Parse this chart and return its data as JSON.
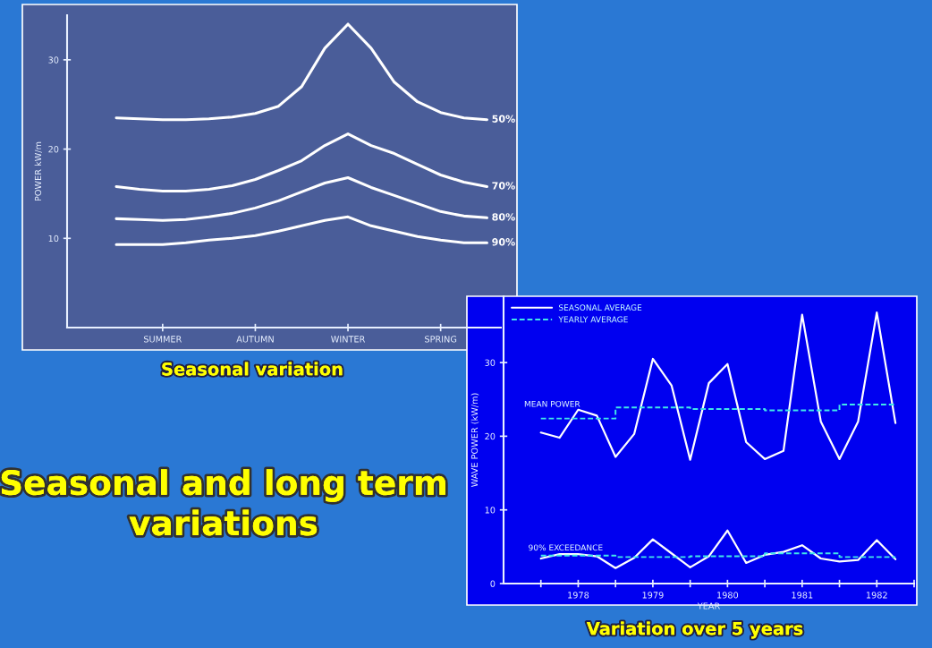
{
  "chart_data": [
    {
      "type": "line",
      "title": "Seasonal variation",
      "ylabel": "POWER kW/m",
      "categories": [
        null,
        null,
        "SUMMER",
        null,
        null,
        null,
        "AUTUMN",
        null,
        null,
        null,
        "WINTER",
        null,
        null,
        null,
        "SPRING",
        null,
        null
      ],
      "series": [
        {
          "name": "50%",
          "color": "#ffffff",
          "values": [
            23.5,
            23.4,
            23.3,
            23.3,
            23.4,
            23.6,
            24.0,
            24.8,
            27.0,
            31.3,
            34.0,
            31.3,
            27.5,
            25.3,
            24.1,
            23.5,
            23.3
          ]
        },
        {
          "name": "70%",
          "color": "#ffffff",
          "values": [
            15.8,
            15.5,
            15.3,
            15.3,
            15.5,
            15.9,
            16.6,
            17.6,
            18.7,
            20.4,
            21.7,
            20.4,
            19.5,
            18.3,
            17.1,
            16.3,
            15.8
          ]
        },
        {
          "name": "80%",
          "color": "#ffffff",
          "values": [
            12.2,
            12.1,
            12.0,
            12.1,
            12.4,
            12.8,
            13.4,
            14.2,
            15.2,
            16.2,
            16.8,
            15.7,
            14.8,
            13.9,
            13.0,
            12.5,
            12.3
          ]
        },
        {
          "name": "90%",
          "color": "#ffffff",
          "values": [
            9.3,
            9.3,
            9.3,
            9.5,
            9.8,
            10.0,
            10.3,
            10.8,
            11.4,
            12.0,
            12.4,
            11.4,
            10.8,
            10.2,
            9.8,
            9.5,
            9.5
          ]
        }
      ],
      "ylim": [
        0,
        35
      ],
      "yticks": [
        10,
        20,
        30
      ]
    },
    {
      "type": "line",
      "title": "Variation over 5 years",
      "xlabel": "YEAR",
      "ylabel": "WAVE POWER (kW/m)",
      "x": [
        1978,
        1978.25,
        1978.5,
        1978.75,
        1979,
        1979.25,
        1979.5,
        1979.75,
        1980,
        1980.25,
        1980.5,
        1980.75,
        1981,
        1981.25,
        1981.5,
        1981.75,
        1982,
        1982.25,
        1982.5,
        1982.75
      ],
      "series": [
        {
          "name": "SEASONAL AVERAGE",
          "color": "#ffffff",
          "values": [
            20.5,
            19.8,
            23.6,
            22.8,
            17.2,
            20.3,
            30.5,
            26.9,
            16.8,
            27.2,
            29.8,
            19.2,
            16.9,
            18.0,
            36.5,
            22.0,
            16.9,
            22.0,
            36.8,
            21.8
          ]
        },
        {
          "name": "YEARLY AVERAGE",
          "type": "step",
          "color": "#40e8e8",
          "line_style": "dashed",
          "x": [
            1978,
            1979,
            1980,
            1981,
            1982,
            1982.75
          ],
          "values": [
            22.4,
            23.9,
            23.7,
            23.5,
            24.3,
            24.3
          ]
        },
        {
          "color": "#ffffff",
          "values": [
            3.4,
            4.0,
            4.0,
            3.7,
            2.1,
            3.5,
            6.0,
            4.1,
            2.2,
            3.7,
            7.2,
            2.8,
            3.9,
            4.3,
            5.2,
            3.4,
            3.0,
            3.2,
            5.9,
            3.3
          ]
        },
        {
          "type": "step",
          "color": "#40e8e8",
          "line_style": "dashed",
          "x": [
            1978,
            1979,
            1980,
            1981,
            1982,
            1982.75
          ],
          "values": [
            3.8,
            3.6,
            3.7,
            4.1,
            3.6,
            3.6
          ]
        }
      ],
      "xlim": [
        1977.5,
        1983
      ],
      "ylim": [
        0,
        39
      ],
      "xticks": [
        {
          "value": 1978,
          "label": null
        },
        {
          "value": 1978.5,
          "label": "1978"
        },
        {
          "value": 1979,
          "label": null
        },
        {
          "value": 1979.5,
          "label": "1979"
        },
        {
          "value": 1980,
          "label": null
        },
        {
          "value": 1980.5,
          "label": "1980"
        },
        {
          "value": 1981,
          "label": null
        },
        {
          "value": 1981.5,
          "label": "1981"
        },
        {
          "value": 1982,
          "label": null
        },
        {
          "value": 1982.5,
          "label": "1982"
        },
        {
          "value": 1983,
          "label": null
        }
      ],
      "yticks": [
        0,
        10,
        20,
        30
      ],
      "legend": "top left",
      "annotations": [
        "MEAN POWER",
        "90% EXCEEDANCE"
      ]
    },
    {
      "type": "other",
      "title": "Seasonal and long term\nvariations"
    }
  ]
}
